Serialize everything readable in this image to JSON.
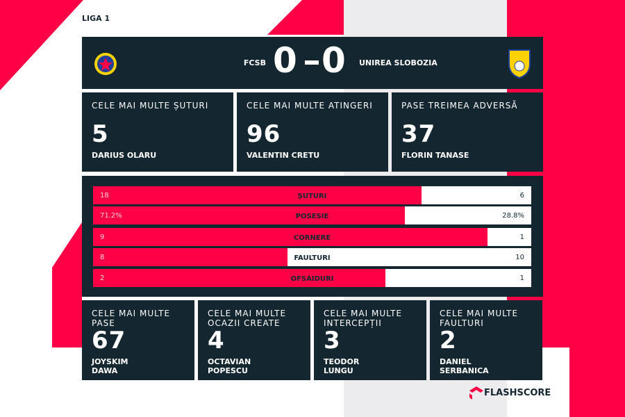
{
  "league": "LIGA 1",
  "match": {
    "home_team": "FCSB",
    "home_score": 0,
    "away_score": 0,
    "away_team": "UNIREA SLOBOZIA"
  },
  "leaders": [
    {
      "title": "CELE MAI MULTE ȘUTURI",
      "value": 5,
      "player": "DARIUS OLARU"
    },
    {
      "title": "CELE MAI MULTE ATINGERI",
      "value": 96,
      "player": "VALENTIN CRETU"
    },
    {
      "title": "PASE TREIMEA ADVERSĂ",
      "value": 37,
      "player": "FLORIN TANASE"
    }
  ],
  "stats": [
    {
      "label": "ȘUTURI",
      "home": 18,
      "away": 6
    },
    {
      "label": "POSESIE",
      "home": 71.2,
      "away": 28.8,
      "home_label": "71.2%",
      "away_label": "28.8%"
    },
    {
      "label": "CORNERE",
      "home": 9,
      "away": 1
    },
    {
      "label": "FAULTURI",
      "home": 8,
      "away": 10
    },
    {
      "label": "OFSAIDURI",
      "home": 2,
      "away": 1
    }
  ],
  "bottom_leaders": [
    {
      "title": "CELE MAI MULTE PASE",
      "value": 67,
      "player": "JOYSKIM DAWA"
    },
    {
      "title": "CELE MAI MULTE OCAZII CREATE",
      "value": 4,
      "player": "OCTAVIAN POPESCU"
    },
    {
      "title": "CELE MAI MULTE INTERCEPȚII",
      "value": 3,
      "player": "TEODOR LUNGU"
    },
    {
      "title": "CELE MAI MULTE FAULTURI",
      "value": 2,
      "player": "DANIEL SERBANICA"
    }
  ],
  "brand": "FLASHSCORE"
}
